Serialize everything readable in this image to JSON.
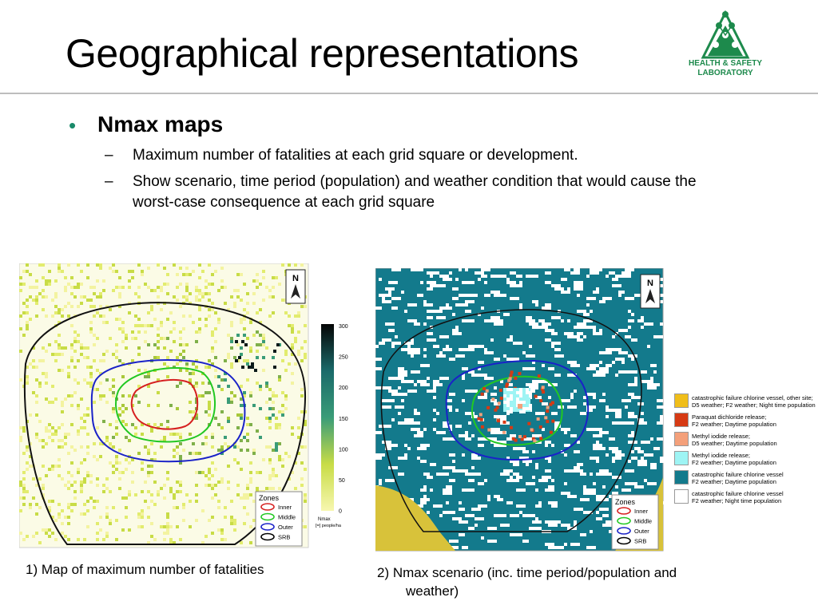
{
  "slide": {
    "title": "Geographical representations",
    "logo": {
      "icon": "hsl-diamond-logo",
      "line1": "HEALTH & SAFETY",
      "line2": "LABORATORY",
      "color": "#1d8a4c"
    },
    "bullet": {
      "heading": "Nmax maps",
      "subs": [
        {
          "dash": "–",
          "text": "Maximum number of fatalities at each grid square or development."
        },
        {
          "dash": "–",
          "text": "Show scenario, time period (population) and weather condition that would cause the worst-case consequence at each grid square"
        }
      ]
    }
  },
  "map1": {
    "north": "N",
    "colorbar": {
      "ticks": [
        "300",
        "250",
        "200",
        "150",
        "100",
        "50",
        "0"
      ],
      "label1": "Nmax",
      "label2": "[=] people/ha"
    },
    "zones": {
      "title": "Zones",
      "items": [
        {
          "label": "Inner",
          "color": "#d62020"
        },
        {
          "label": "Middle",
          "color": "#22c822"
        },
        {
          "label": "Outer",
          "color": "#1a22c8"
        },
        {
          "label": "SRB",
          "color": "#000000"
        }
      ]
    },
    "caption": "1) Map of maximum number of fatalities"
  },
  "map2": {
    "north": "N",
    "zones": {
      "title": "Zones",
      "items": [
        {
          "label": "Inner",
          "color": "#d62020"
        },
        {
          "label": "Middle",
          "color": "#22c822"
        },
        {
          "label": "Outer",
          "color": "#1a22c8"
        },
        {
          "label": "SRB",
          "color": "#000000"
        }
      ]
    },
    "legend": [
      {
        "color": "#f0be1a",
        "line1": "catastrophic failure chlorine vessel, other site;",
        "line2": "D5 weather; F2 weather; Night time population"
      },
      {
        "color": "#d63a14",
        "line1": "Paraquat dichloride release;",
        "line2": "F2 weather; Daytime population"
      },
      {
        "color": "#f4a07a",
        "line1": "Methyl iodide release;",
        "line2": "D5 weather; Daytime population"
      },
      {
        "color": "#9ef4f4",
        "line1": "Methyl iodide release;",
        "line2": "F2 weather; Daytime population"
      },
      {
        "color": "#137a8c",
        "line1": "catastrophic failure chlorine vessel",
        "line2": "F2 weather; Daytime population"
      },
      {
        "color": "#ffffff",
        "line1": "catastrophic failure chlorine vessel",
        "line2": "F2 weather; Night time population"
      }
    ],
    "caption_line1": "2) Nmax scenario (inc. time period/population and",
    "caption_line2": "weather)"
  }
}
